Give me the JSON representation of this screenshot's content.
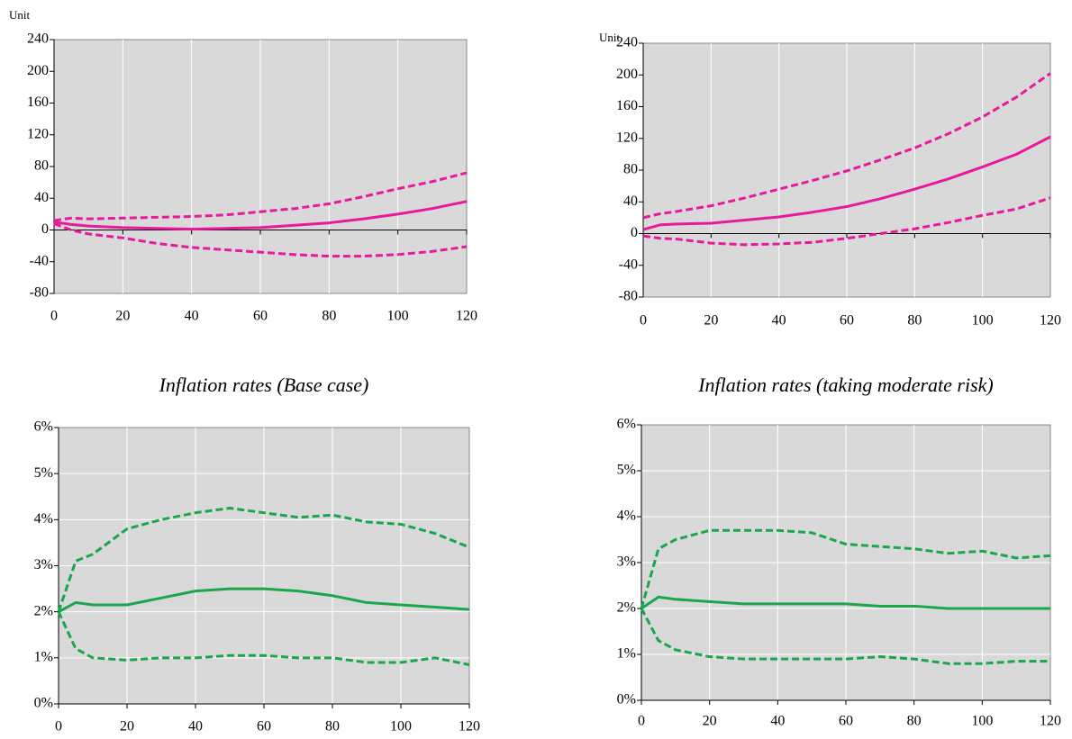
{
  "chart_data": [
    {
      "type": "line",
      "ylabel": "Unit",
      "x": [
        0,
        5,
        10,
        20,
        30,
        40,
        50,
        60,
        70,
        80,
        90,
        100,
        110,
        120
      ],
      "xlim": [
        0,
        120
      ],
      "xticks": [
        0,
        20,
        40,
        60,
        80,
        100,
        120
      ],
      "ylim": [
        -80,
        240
      ],
      "yticks": [
        -80,
        -40,
        0,
        40,
        80,
        120,
        160,
        200,
        240
      ],
      "grid": "x",
      "background": "#d9d9d9",
      "series": [
        {
          "color": "#e8199b",
          "style": "solid",
          "values": [
            10,
            7,
            5,
            3,
            2,
            1,
            2,
            3,
            6,
            9,
            14,
            20,
            27,
            36
          ]
        },
        {
          "color": "#e8199b",
          "style": "dashed",
          "values": [
            12,
            15,
            14,
            15,
            16,
            17,
            19,
            23,
            27,
            33,
            42,
            52,
            61,
            72
          ]
        },
        {
          "color": "#e8199b",
          "style": "dashed",
          "values": [
            8,
            0,
            -5,
            -10,
            -17,
            -22,
            -25,
            -28,
            -31,
            -33,
            -33,
            -31,
            -27,
            -21
          ]
        }
      ]
    },
    {
      "type": "line",
      "ylabel": "Unit",
      "x": [
        0,
        5,
        10,
        20,
        30,
        40,
        50,
        60,
        70,
        80,
        90,
        100,
        110,
        120
      ],
      "xlim": [
        0,
        120
      ],
      "xticks": [
        0,
        20,
        40,
        60,
        80,
        100,
        120
      ],
      "ylim": [
        -80,
        240
      ],
      "yticks": [
        -80,
        -40,
        0,
        40,
        80,
        120,
        160,
        200,
        240
      ],
      "grid": "x",
      "background": "#d9d9d9",
      "series": [
        {
          "color": "#e8199b",
          "style": "solid",
          "values": [
            5,
            11,
            12,
            13,
            17,
            21,
            27,
            34,
            44,
            56,
            69,
            84,
            100,
            122
          ]
        },
        {
          "color": "#e8199b",
          "style": "dashed",
          "values": [
            20,
            25,
            28,
            35,
            45,
            56,
            67,
            79,
            93,
            108,
            126,
            147,
            172,
            202
          ]
        },
        {
          "color": "#e8199b",
          "style": "dashed",
          "values": [
            -3,
            -6,
            -7,
            -12,
            -14,
            -13,
            -11,
            -6,
            0,
            6,
            14,
            23,
            31,
            45
          ]
        }
      ]
    },
    {
      "type": "line",
      "title": "Inflation rates (Base case)",
      "x": [
        0,
        5,
        10,
        20,
        30,
        40,
        50,
        60,
        70,
        80,
        90,
        100,
        110,
        120
      ],
      "xlim": [
        0,
        120
      ],
      "xticks": [
        0,
        20,
        40,
        60,
        80,
        100,
        120
      ],
      "ylim": [
        0,
        6
      ],
      "yticks": [
        {
          "value": 0,
          "label": "0%"
        },
        {
          "value": 1,
          "label": "1%"
        },
        {
          "value": 2,
          "label": "2%"
        },
        {
          "value": 3,
          "label": "3%"
        },
        {
          "value": 4,
          "label": "4%"
        },
        {
          "value": 5,
          "label": "5%"
        },
        {
          "value": 6,
          "label": "6%"
        }
      ],
      "grid": "both",
      "background": "#d9d9d9",
      "series": [
        {
          "color": "#1aa64a",
          "style": "solid",
          "values": [
            2.0,
            2.2,
            2.15,
            2.15,
            2.3,
            2.45,
            2.5,
            2.5,
            2.45,
            2.35,
            2.2,
            2.15,
            2.1,
            2.05
          ]
        },
        {
          "color": "#1aa64a",
          "style": "dashed",
          "values": [
            2.0,
            3.1,
            3.25,
            3.8,
            4.0,
            4.15,
            4.25,
            4.15,
            4.05,
            4.1,
            3.95,
            3.9,
            3.7,
            3.4
          ]
        },
        {
          "color": "#1aa64a",
          "style": "dashed",
          "values": [
            2.0,
            1.2,
            1.0,
            0.95,
            1.0,
            1.0,
            1.05,
            1.05,
            1.0,
            1.0,
            0.9,
            0.9,
            1.0,
            0.85
          ]
        }
      ]
    },
    {
      "type": "line",
      "title": "Inflation rates (taking moderate risk)",
      "x": [
        0,
        5,
        10,
        20,
        30,
        40,
        50,
        60,
        70,
        80,
        90,
        100,
        110,
        120
      ],
      "xlim": [
        0,
        120
      ],
      "xticks": [
        0,
        20,
        40,
        60,
        80,
        100,
        120
      ],
      "ylim": [
        0,
        6
      ],
      "yticks": [
        {
          "value": 0,
          "label": "0%"
        },
        {
          "value": 1,
          "label": "1%"
        },
        {
          "value": 2,
          "label": "2%"
        },
        {
          "value": 3,
          "label": "3%"
        },
        {
          "value": 4,
          "label": "4%"
        },
        {
          "value": 5,
          "label": "5%"
        },
        {
          "value": 6,
          "label": "6%"
        }
      ],
      "grid": "both",
      "background": "#d9d9d9",
      "series": [
        {
          "color": "#1aa64a",
          "style": "solid",
          "values": [
            2.0,
            2.25,
            2.2,
            2.15,
            2.1,
            2.1,
            2.1,
            2.1,
            2.05,
            2.05,
            2.0,
            2.0,
            2.0,
            2.0
          ]
        },
        {
          "color": "#1aa64a",
          "style": "dashed",
          "values": [
            2.0,
            3.3,
            3.5,
            3.7,
            3.7,
            3.7,
            3.65,
            3.4,
            3.35,
            3.3,
            3.2,
            3.25,
            3.1,
            3.15
          ]
        },
        {
          "color": "#1aa64a",
          "style": "dashed",
          "values": [
            2.0,
            1.3,
            1.1,
            0.95,
            0.9,
            0.9,
            0.9,
            0.9,
            0.95,
            0.9,
            0.8,
            0.8,
            0.85,
            0.85
          ]
        }
      ]
    }
  ]
}
